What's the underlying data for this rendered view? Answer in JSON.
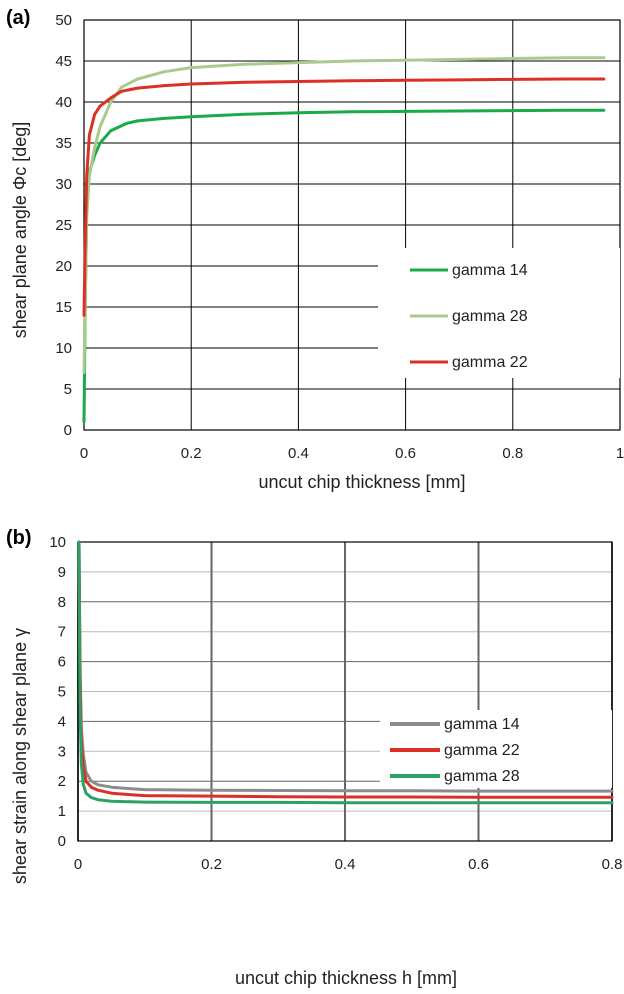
{
  "chart_data": [
    {
      "panel_label": "(a)",
      "type": "line",
      "xlabel": "uncut chip thickness [mm]",
      "ylabel": "shear plane angle  Φc [deg]",
      "xlim": [
        0,
        1
      ],
      "ylim": [
        0,
        50
      ],
      "xticks": [
        "0",
        "0.2",
        "0.4",
        "0.6",
        "0.8",
        "1"
      ],
      "yticks": [
        "0",
        "5",
        "10",
        "15",
        "20",
        "25",
        "30",
        "35",
        "40",
        "45",
        "50"
      ],
      "grid": "major, both axes",
      "legend_position": "right, middle",
      "legend_labels": [
        "gamma 14",
        "gamma 28",
        "gamma 22"
      ],
      "series": [
        {
          "name": "gamma 14",
          "color": "#1aaa4a",
          "x": [
            0.0,
            0.002,
            0.005,
            0.01,
            0.02,
            0.03,
            0.05,
            0.08,
            0.1,
            0.15,
            0.2,
            0.3,
            0.4,
            0.5,
            0.6,
            0.7,
            0.8,
            0.9,
            0.97
          ],
          "y": [
            1,
            14,
            27,
            31.5,
            33.5,
            35,
            36.5,
            37.4,
            37.7,
            38.0,
            38.2,
            38.5,
            38.7,
            38.8,
            38.85,
            38.9,
            38.95,
            39.0,
            39.0
          ]
        },
        {
          "name": "gamma 28",
          "color": "#a9ca8c",
          "x": [
            0.0,
            0.002,
            0.005,
            0.01,
            0.02,
            0.03,
            0.05,
            0.07,
            0.1,
            0.15,
            0.2,
            0.3,
            0.4,
            0.5,
            0.6,
            0.7,
            0.8,
            0.9,
            0.97
          ],
          "y": [
            7,
            15,
            26,
            31,
            34.5,
            37,
            40,
            41.8,
            42.8,
            43.7,
            44.2,
            44.6,
            44.8,
            45.0,
            45.1,
            45.2,
            45.3,
            45.4,
            45.4
          ]
        },
        {
          "name": "gamma 22",
          "color": "#dd3025",
          "x": [
            0.0,
            0.002,
            0.005,
            0.01,
            0.02,
            0.03,
            0.05,
            0.07,
            0.1,
            0.15,
            0.2,
            0.3,
            0.4,
            0.5,
            0.6,
            0.7,
            0.8,
            0.9,
            0.97
          ],
          "y": [
            14,
            22,
            31,
            36,
            38.5,
            39.5,
            40.5,
            41.3,
            41.7,
            42.0,
            42.2,
            42.4,
            42.5,
            42.6,
            42.65,
            42.7,
            42.75,
            42.8,
            42.8
          ]
        }
      ]
    },
    {
      "panel_label": "(b)",
      "type": "line",
      "xlabel": "uncut chip thickness  h  [mm]",
      "ylabel": "shear strain along shear plane  γ",
      "xlim": [
        0,
        0.8
      ],
      "ylim": [
        0,
        10
      ],
      "xticks": [
        "0",
        "0.2",
        "0.4",
        "0.6",
        "0.8"
      ],
      "yticks": [
        "0",
        "1",
        "2",
        "3",
        "4",
        "5",
        "6",
        "7",
        "8",
        "9",
        "10"
      ],
      "grid": "major, both axes",
      "legend_position": "right, middle",
      "legend_labels": [
        "gamma 14",
        "gamma 22",
        "gamma 28"
      ],
      "series": [
        {
          "name": "gamma 14",
          "color": "#8c8c8c",
          "x": [
            0.0015,
            0.003,
            0.005,
            0.008,
            0.012,
            0.02,
            0.03,
            0.05,
            0.08,
            0.1,
            0.2,
            0.3,
            0.4,
            0.5,
            0.6,
            0.7,
            0.8
          ],
          "y": [
            10,
            6.0,
            3.8,
            2.9,
            2.3,
            2.0,
            1.88,
            1.8,
            1.75,
            1.72,
            1.7,
            1.69,
            1.68,
            1.68,
            1.67,
            1.67,
            1.67
          ]
        },
        {
          "name": "gamma 22",
          "color": "#dd3025",
          "x": [
            0.0015,
            0.003,
            0.005,
            0.008,
            0.012,
            0.02,
            0.03,
            0.05,
            0.08,
            0.1,
            0.2,
            0.3,
            0.4,
            0.5,
            0.6,
            0.7,
            0.8
          ],
          "y": [
            10,
            5.5,
            3.3,
            2.5,
            2.0,
            1.8,
            1.7,
            1.6,
            1.55,
            1.52,
            1.5,
            1.48,
            1.47,
            1.47,
            1.46,
            1.46,
            1.46
          ]
        },
        {
          "name": "gamma 28",
          "color": "#2fa065",
          "x": [
            0.0015,
            0.003,
            0.005,
            0.008,
            0.012,
            0.02,
            0.03,
            0.05,
            0.08,
            0.1,
            0.2,
            0.3,
            0.4,
            0.5,
            0.6,
            0.7,
            0.8
          ],
          "y": [
            10,
            4.5,
            2.6,
            1.9,
            1.6,
            1.45,
            1.38,
            1.33,
            1.31,
            1.3,
            1.29,
            1.29,
            1.28,
            1.28,
            1.28,
            1.28,
            1.28
          ]
        }
      ]
    }
  ]
}
